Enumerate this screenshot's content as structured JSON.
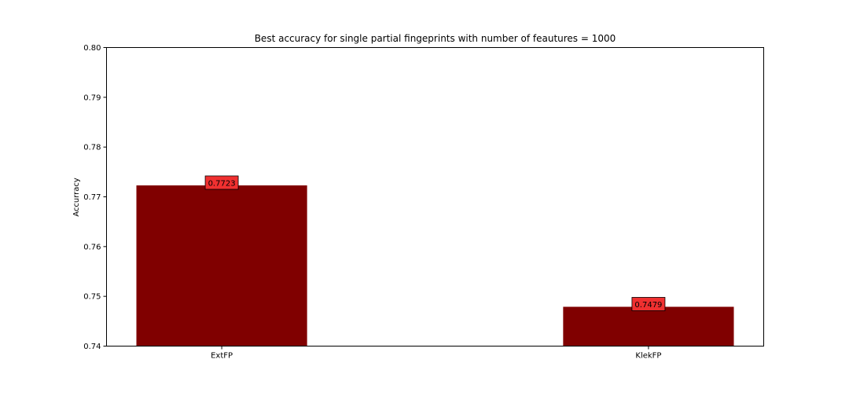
{
  "chart_data": {
    "type": "bar",
    "title": "Best accuracy for single partial fingeprints with number of feautures = 1000",
    "xlabel": "",
    "ylabel": "Accurracy",
    "categories": [
      "ExtFP",
      "KlekFP"
    ],
    "values": [
      0.7723,
      0.7479
    ],
    "data_labels": [
      "0.7723",
      "0.7479"
    ],
    "ylim": [
      0.74,
      0.8
    ],
    "y_ticks": [
      0.74,
      0.75,
      0.76,
      0.77,
      0.78,
      0.79,
      0.8
    ],
    "y_tick_labels": [
      "0.74",
      "0.75",
      "0.76",
      "0.77",
      "0.78",
      "0.79",
      "0.80"
    ],
    "grid": false,
    "bar_color": "#800000",
    "label_box_color": "#f03030"
  }
}
